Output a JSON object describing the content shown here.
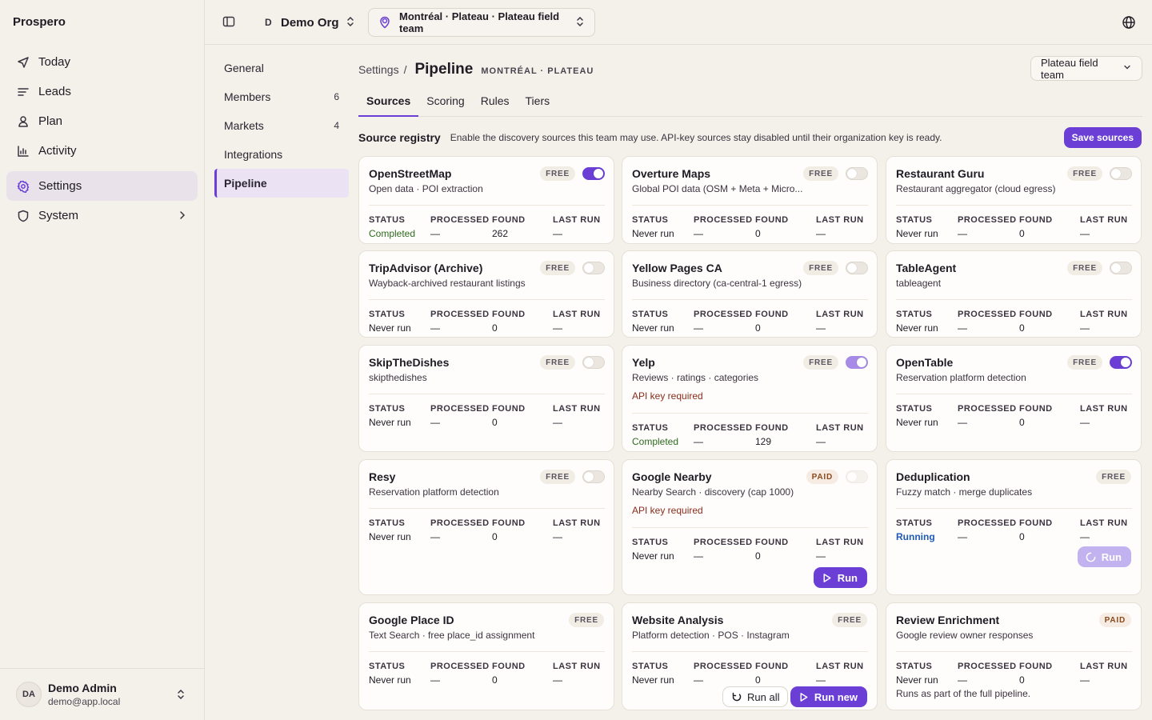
{
  "app": {
    "brand": "Prospero"
  },
  "sidebar": {
    "items": [
      {
        "label": "Today",
        "icon": "send-icon"
      },
      {
        "label": "Leads",
        "icon": "list-icon"
      },
      {
        "label": "Plan",
        "icon": "map-person-icon"
      },
      {
        "label": "Activity",
        "icon": "chart-icon"
      },
      {
        "label": "Settings",
        "icon": "gear-icon",
        "active": true
      },
      {
        "label": "System",
        "icon": "shield-icon"
      }
    ],
    "user": {
      "initials": "DA",
      "name": "Demo Admin",
      "email": "demo@app.local"
    }
  },
  "topbar": {
    "org_letter": "D",
    "org_name": "Demo Org",
    "team_context": "Montréal · Plateau · Plateau field team"
  },
  "subnav": {
    "items": [
      {
        "label": "General",
        "count": ""
      },
      {
        "label": "Members",
        "count": "6"
      },
      {
        "label": "Markets",
        "count": "4"
      },
      {
        "label": "Integrations",
        "count": ""
      },
      {
        "label": "Pipeline",
        "count": "",
        "active": true
      }
    ]
  },
  "page": {
    "breadcrumb_root": "Settings",
    "breadcrumb_sep": "/",
    "title": "Pipeline",
    "subtitle": "MONTRÉAL · PLATEAU",
    "team_select": "Plateau field team",
    "tabs": [
      "Sources",
      "Scoring",
      "Rules",
      "Tiers"
    ],
    "registry_title": "Source registry",
    "registry_desc": "Enable the discovery sources this team may use. API-key sources stay disabled until their organization key is ready.",
    "save_label": "Save sources"
  },
  "stat_labels": {
    "status": "STATUS",
    "processed": "PROCESSED",
    "found": "FOUND",
    "last_run": "LAST RUN"
  },
  "cards": [
    {
      "name": "OpenStreetMap",
      "desc": "Open data · POI extraction",
      "badge": "FREE",
      "toggle": "on",
      "status": "Completed",
      "processed": "—",
      "found": "262",
      "last_run": "—"
    },
    {
      "name": "Overture Maps",
      "desc": "Global POI data (OSM + Meta + Micro...",
      "badge": "FREE",
      "toggle": "off",
      "status": "Never run",
      "processed": "—",
      "found": "0",
      "last_run": "—"
    },
    {
      "name": "Restaurant Guru",
      "desc": "Restaurant aggregator (cloud egress)",
      "badge": "FREE",
      "toggle": "off",
      "status": "Never run",
      "processed": "—",
      "found": "0",
      "last_run": "—"
    },
    {
      "name": "TripAdvisor (Archive)",
      "desc": "Wayback-archived restaurant listings",
      "badge": "FREE",
      "toggle": "off",
      "status": "Never run",
      "processed": "—",
      "found": "0",
      "last_run": "—"
    },
    {
      "name": "Yellow Pages CA",
      "desc": "Business directory (ca-central-1 egress)",
      "badge": "FREE",
      "toggle": "off",
      "status": "Never run",
      "processed": "—",
      "found": "0",
      "last_run": "—"
    },
    {
      "name": "TableAgent",
      "desc": "tableagent",
      "badge": "FREE",
      "toggle": "off",
      "status": "Never run",
      "processed": "—",
      "found": "0",
      "last_run": "—"
    },
    {
      "name": "SkipTheDishes",
      "desc": "skipthedishes",
      "badge": "FREE",
      "toggle": "off",
      "status": "Never run",
      "processed": "—",
      "found": "0",
      "last_run": "—"
    },
    {
      "name": "Yelp",
      "desc": "Reviews · ratings · categories",
      "badge": "FREE",
      "toggle": "on-dim",
      "apikey": "API key required",
      "status": "Completed",
      "processed": "—",
      "found": "129",
      "last_run": "—"
    },
    {
      "name": "OpenTable",
      "desc": "Reservation platform detection",
      "badge": "FREE",
      "toggle": "on",
      "status": "Never run",
      "processed": "—",
      "found": "0",
      "last_run": "—"
    },
    {
      "name": "Resy",
      "desc": "Reservation platform detection",
      "badge": "FREE",
      "toggle": "off",
      "status": "Never run",
      "processed": "—",
      "found": "0",
      "last_run": "—"
    },
    {
      "name": "Google Nearby",
      "desc": "Nearby Search · discovery (cap 1000)",
      "badge": "PAID",
      "toggle": "disabled",
      "apikey": "API key required",
      "status": "Never run",
      "processed": "—",
      "found": "0",
      "last_run": "—",
      "run_label": "Run"
    },
    {
      "name": "Deduplication",
      "desc": "Fuzzy match · merge duplicates",
      "badge": "FREE",
      "status": "Running",
      "processed": "—",
      "found": "0",
      "last_run": "—",
      "run_label": "Run"
    },
    {
      "name": "Google Place ID",
      "desc": "Text Search · free place_id assignment",
      "badge": "FREE",
      "status": "Never run",
      "processed": "—",
      "found": "0",
      "last_run": "—"
    },
    {
      "name": "Website Analysis",
      "desc": "Platform detection · POS · Instagram",
      "badge": "FREE",
      "status": "Never run",
      "processed": "—",
      "found": "0",
      "last_run": "—",
      "run_all_label": "Run all",
      "run_new_label": "Run new"
    },
    {
      "name": "Review Enrichment",
      "desc": "Google review owner responses",
      "badge": "PAID",
      "status": "Never run",
      "processed": "—",
      "found": "0",
      "last_run": "—",
      "note": "Runs as part of the full pipeline."
    }
  ]
}
